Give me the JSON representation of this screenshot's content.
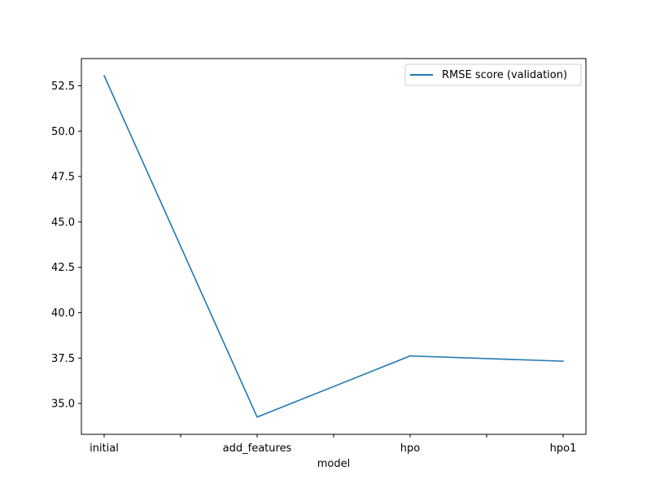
{
  "chart_data": {
    "type": "line",
    "categories": [
      "initial",
      "add_features",
      "hpo",
      "hpo1"
    ],
    "series": [
      {
        "name": "RMSE score (validation)",
        "values": [
          53.06,
          34.25,
          37.62,
          37.33
        ],
        "color": "#1f77b4"
      }
    ],
    "title": "",
    "xlabel": "model",
    "ylabel": "",
    "ylim": [
      33.3,
      54.0
    ],
    "yticks": [
      "35.0",
      "37.5",
      "40.0",
      "42.5",
      "45.0",
      "47.5",
      "50.0",
      "52.5"
    ],
    "grid": false,
    "legend_position": "top-right"
  }
}
